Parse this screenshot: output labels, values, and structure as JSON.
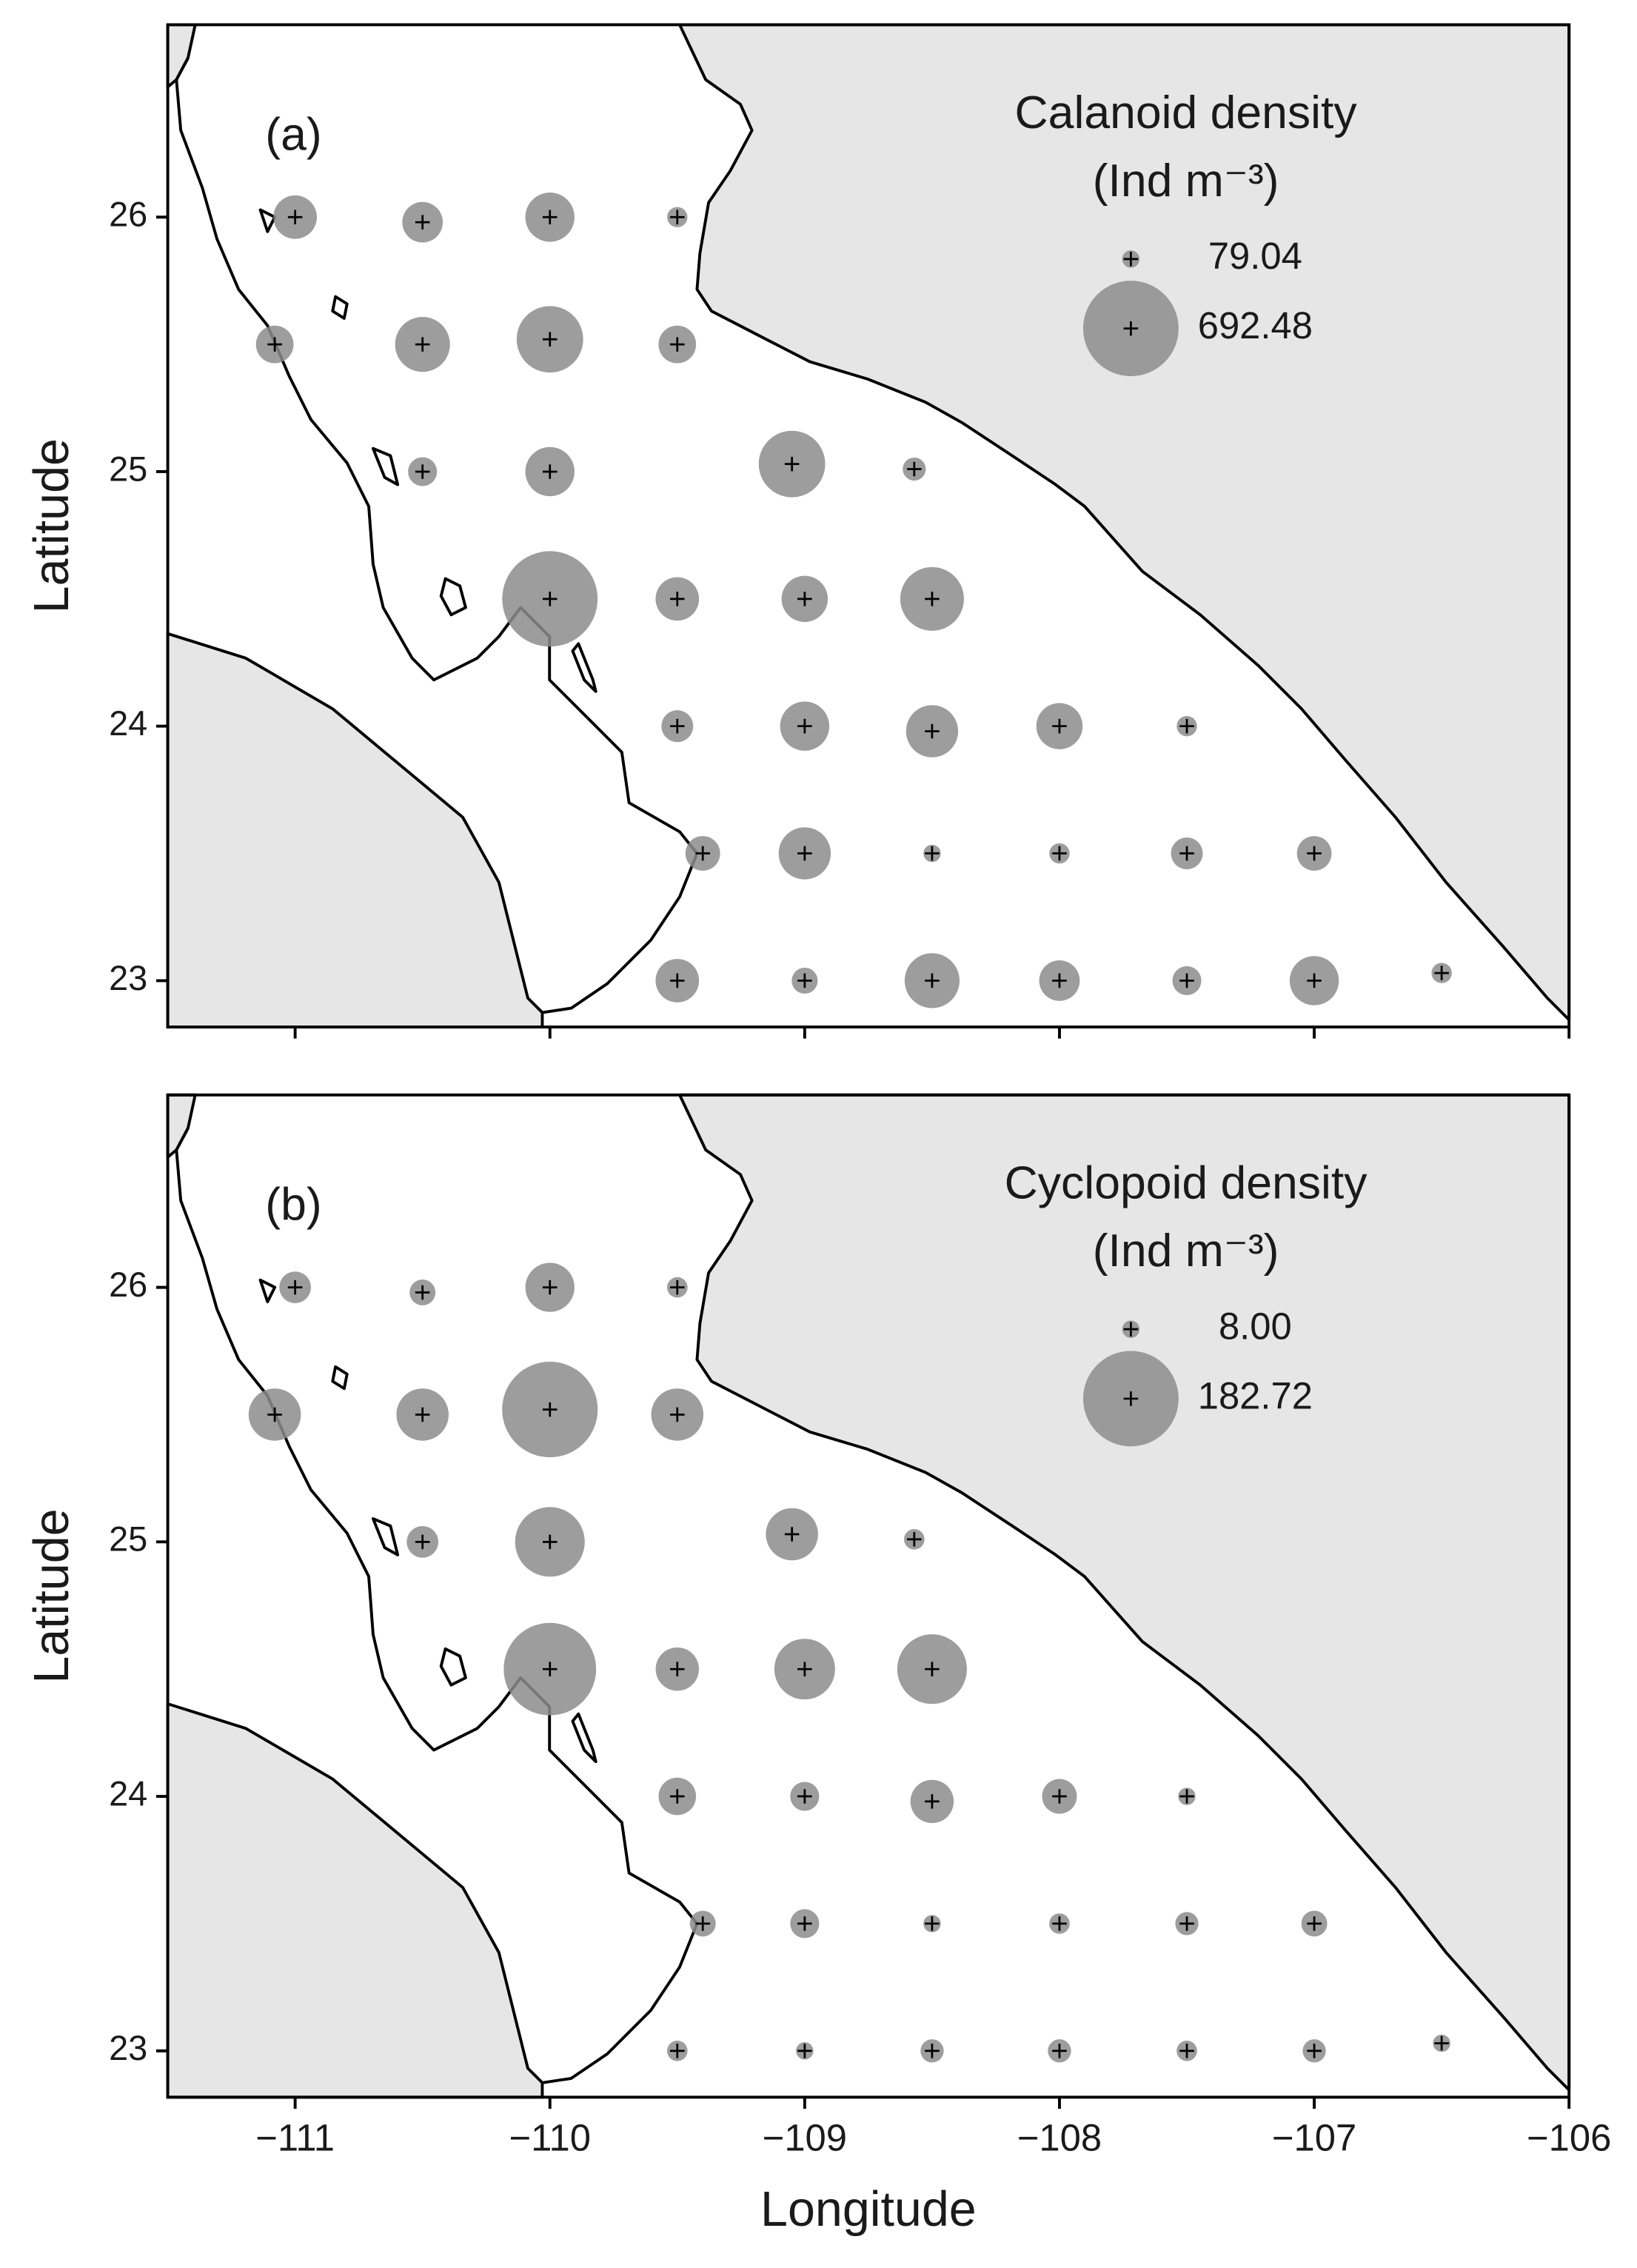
{
  "chart_data": [
    {
      "type": "bubble",
      "panel_label": "(a)",
      "legend_title": "Calanoid density",
      "legend_unit": "(Ind m⁻³)",
      "ylabel": "Latitude",
      "color": "#8c8c8c",
      "x": [
        -111,
        -110.5,
        -110,
        -109.5,
        -111.08,
        -110.5,
        -110,
        -109.5,
        -110.5,
        -110,
        -109.05,
        -108.57,
        -110,
        -109.5,
        -109,
        -108.5,
        -109.5,
        -109,
        -108.5,
        -108,
        -107.5,
        -109.4,
        -109,
        -108.5,
        -108,
        -107.5,
        -107,
        -109.5,
        -109,
        -108.5,
        -108,
        -107.5,
        -107,
        -106.5
      ],
      "y": [
        26,
        25.98,
        26,
        26,
        25.5,
        25.5,
        25.52,
        25.5,
        25,
        25,
        25.03,
        25.01,
        24.5,
        24.5,
        24.5,
        24.5,
        24,
        24,
        23.98,
        24,
        24,
        23.5,
        23.5,
        23.5,
        23.5,
        23.5,
        23.5,
        23,
        23,
        23,
        23,
        23,
        23,
        23.03
      ],
      "sizes": [
        284,
        261,
        329,
        102,
        238,
        374,
        465,
        238,
        170,
        329,
        465,
        124,
        692,
        284,
        306,
        443,
        193,
        329,
        352,
        306,
        102,
        215,
        352,
        79,
        102,
        193,
        215,
        284,
        147,
        374,
        261,
        170,
        329,
        102
      ],
      "size_legend": {
        "values": [
          79.04,
          692.48
        ]
      },
      "xlim": [
        -111.5,
        -106
      ],
      "ylim": [
        22.818,
        26.756
      ],
      "xticks": [
        -111,
        -110,
        -109,
        -108,
        -107,
        -106
      ],
      "yticks": [
        23,
        24,
        25,
        26
      ]
    },
    {
      "type": "bubble",
      "panel_label": "(b)",
      "legend_title": "Cyclopoid density",
      "legend_unit": "(Ind m⁻³)",
      "ylabel": "Latitude",
      "xlabel": "Longitude",
      "color": "#8c8c8c",
      "x": [
        -111,
        -110.5,
        -110,
        -109.5,
        -111.08,
        -110.5,
        -110,
        -109.5,
        -110.5,
        -110,
        -109.05,
        -108.57,
        -110,
        -109.5,
        -109,
        -108.5,
        -109.5,
        -109,
        -108.5,
        -108,
        -107.5,
        -109.4,
        -109,
        -108.5,
        -108,
        -107.5,
        -107,
        -109.5,
        -109,
        -108.5,
        -108,
        -107.5,
        -107,
        -106.5
      ],
      "y": [
        26,
        25.98,
        26,
        26,
        25.5,
        25.5,
        25.52,
        25.5,
        25,
        25,
        25.03,
        25.01,
        24.5,
        24.5,
        24.5,
        24.5,
        24,
        24,
        23.98,
        24,
        24,
        23.5,
        23.5,
        23.5,
        23.5,
        23.5,
        23.5,
        23,
        23,
        23,
        23,
        23,
        23,
        23.03
      ],
      "sizes": [
        40,
        27,
        79,
        15,
        86,
        86,
        183,
        86,
        40,
        125,
        86,
        15,
        176,
        66,
        105,
        125,
        53,
        34,
        66,
        47,
        8,
        27,
        34,
        8,
        15,
        21,
        27,
        15,
        8,
        21,
        21,
        15,
        21,
        8
      ],
      "size_legend": {
        "values": [
          8,
          182.72
        ],
        "value_labels": [
          "8.00",
          "182.72"
        ]
      },
      "xlim": [
        -111.5,
        -106
      ],
      "ylim": [
        22.818,
        26.756
      ],
      "xticks": [
        {
          "value": -111,
          "label": "−111"
        },
        {
          "value": -110,
          "label": "−110"
        },
        {
          "value": -109,
          "label": "−109"
        },
        {
          "value": -108,
          "label": "−108"
        },
        {
          "value": -107,
          "label": "−107"
        },
        {
          "value": -106,
          "label": "−106"
        }
      ],
      "yticks": [
        23,
        24,
        25,
        26
      ]
    }
  ]
}
